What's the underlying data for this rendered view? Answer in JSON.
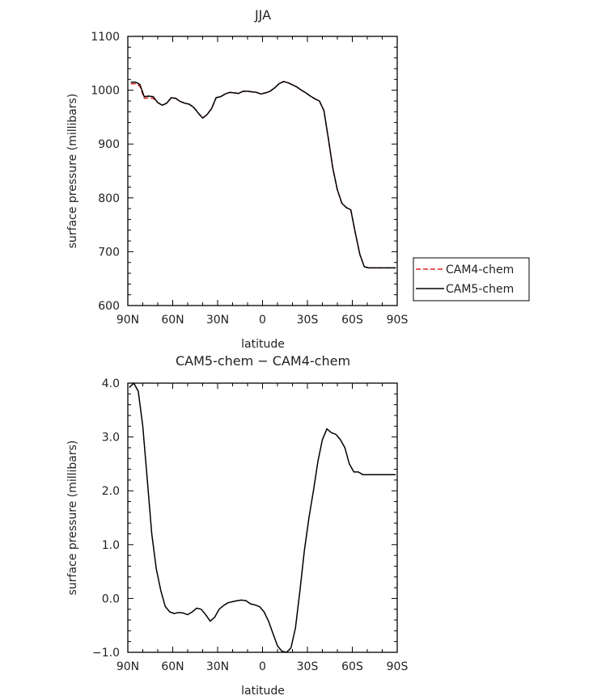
{
  "chart_data": [
    {
      "type": "line",
      "title": "JJA",
      "xlabel": "latitude",
      "ylabel": "surface pressure (millibars)",
      "xlim": [
        90,
        -90
      ],
      "ylim": [
        600,
        1100
      ],
      "xticks": [
        90,
        60,
        30,
        0,
        -30,
        -60,
        -90
      ],
      "xtick_labels": [
        "90N",
        "60N",
        "30N",
        "0",
        "30S",
        "60S",
        "90S"
      ],
      "yticks": [
        600,
        700,
        800,
        900,
        1000,
        1100
      ],
      "ytick_labels": [
        "600",
        "700",
        "800",
        "900",
        "1000",
        "1100"
      ],
      "legend": [
        "CAM4-chem",
        "CAM5-chem"
      ],
      "legend_position": "right",
      "series": [
        {
          "name": "CAM4-chem",
          "color": "#e02020",
          "dash": true,
          "x": [
            88,
            85,
            82,
            79,
            76,
            73,
            70,
            67,
            64,
            61,
            58,
            55,
            52,
            49,
            46,
            43,
            40,
            37,
            34,
            31,
            28,
            25,
            22,
            19,
            16,
            13,
            10,
            7,
            4,
            1,
            -2,
            -5,
            -8,
            -11,
            -14,
            -17,
            -20,
            -23,
            -26,
            -29,
            -32,
            -35,
            -38,
            -41,
            -44,
            -47,
            -50,
            -53,
            -56,
            -59,
            -62,
            -65,
            -68,
            -71,
            -74,
            -77,
            -80,
            -83,
            -86,
            -89
          ],
          "y": [
            1012,
            1012,
            1008,
            985,
            986,
            985,
            977,
            972,
            976,
            986,
            985,
            979,
            976,
            974,
            968,
            958,
            948,
            955,
            966,
            986,
            988,
            993,
            996,
            995,
            994,
            998,
            998,
            997,
            996,
            993,
            995,
            998,
            1004,
            1012,
            1016,
            1014,
            1010,
            1006,
            1000,
            995,
            989,
            984,
            980,
            962,
            910,
            855,
            815,
            790,
            782,
            778,
            735,
            695,
            672,
            670,
            670,
            670,
            670,
            670,
            670,
            670
          ]
        },
        {
          "name": "CAM5-chem",
          "color": "#000000",
          "dash": false,
          "x": [
            88,
            85,
            82,
            79,
            76,
            73,
            70,
            67,
            64,
            61,
            58,
            55,
            52,
            49,
            46,
            43,
            40,
            37,
            34,
            31,
            28,
            25,
            22,
            19,
            16,
            13,
            10,
            7,
            4,
            1,
            -2,
            -5,
            -8,
            -11,
            -14,
            -17,
            -20,
            -23,
            -26,
            -29,
            -32,
            -35,
            -38,
            -41,
            -44,
            -47,
            -50,
            -53,
            -56,
            -59,
            -62,
            -65,
            -68,
            -71,
            -74,
            -77,
            -80,
            -83,
            -86,
            -89
          ],
          "y": [
            1015,
            1015,
            1011,
            988,
            989,
            988,
            977,
            972,
            976,
            986,
            985,
            979,
            976,
            974,
            968,
            958,
            948,
            955,
            966,
            986,
            988,
            993,
            996,
            995,
            994,
            998,
            998,
            997,
            996,
            993,
            995,
            998,
            1004,
            1012,
            1016,
            1014,
            1010,
            1006,
            1000,
            995,
            989,
            984,
            980,
            962,
            910,
            855,
            815,
            790,
            782,
            778,
            735,
            695,
            672,
            670,
            670,
            670,
            670,
            670,
            670,
            670
          ]
        }
      ]
    },
    {
      "type": "line",
      "title": "CAM5-chem − CAM4-chem",
      "xlabel": "latitude",
      "ylabel": "surface pressure (millibars)",
      "xlim": [
        90,
        -90
      ],
      "ylim": [
        -1.0,
        4.0
      ],
      "xticks": [
        90,
        60,
        30,
        0,
        -30,
        -60,
        -90
      ],
      "xtick_labels": [
        "90N",
        "60N",
        "30N",
        "0",
        "30S",
        "60S",
        "90S"
      ],
      "yticks": [
        -1.0,
        0.0,
        1.0,
        2.0,
        3.0,
        4.0
      ],
      "ytick_labels": [
        "−1.0",
        "0.0",
        "1.0",
        "2.0",
        "3.0",
        "4.0"
      ],
      "series": [
        {
          "color": "#000000",
          "dash": false,
          "x": [
            89,
            86,
            83,
            80,
            77,
            74,
            71,
            68,
            65,
            62,
            59,
            56,
            53,
            50,
            47,
            44,
            41,
            38,
            35,
            32,
            29,
            26,
            23,
            20,
            17,
            14,
            11,
            8,
            5,
            2,
            -1,
            -4,
            -7,
            -10,
            -13,
            -16,
            -19,
            -22,
            -25,
            -28,
            -31,
            -34,
            -37,
            -40,
            -43,
            -46,
            -49,
            -52,
            -55,
            -58,
            -61,
            -64,
            -67,
            -70,
            -73,
            -76,
            -79,
            -82,
            -85,
            -88,
            -89
          ],
          "y": [
            3.92,
            4.0,
            3.85,
            3.2,
            2.2,
            1.2,
            0.55,
            0.15,
            -0.15,
            -0.25,
            -0.28,
            -0.26,
            -0.27,
            -0.3,
            -0.25,
            -0.18,
            -0.2,
            -0.3,
            -0.42,
            -0.35,
            -0.2,
            -0.13,
            -0.08,
            -0.06,
            -0.04,
            -0.03,
            -0.04,
            -0.1,
            -0.12,
            -0.15,
            -0.25,
            -0.42,
            -0.65,
            -0.88,
            -0.98,
            -1.0,
            -0.92,
            -0.55,
            0.15,
            0.9,
            1.5,
            2.0,
            2.55,
            2.95,
            3.15,
            3.08,
            3.05,
            2.95,
            2.8,
            2.5,
            2.35,
            2.35,
            2.3,
            2.3,
            2.3,
            2.3,
            2.3,
            2.3,
            2.3,
            2.3,
            2.3
          ]
        }
      ]
    }
  ]
}
